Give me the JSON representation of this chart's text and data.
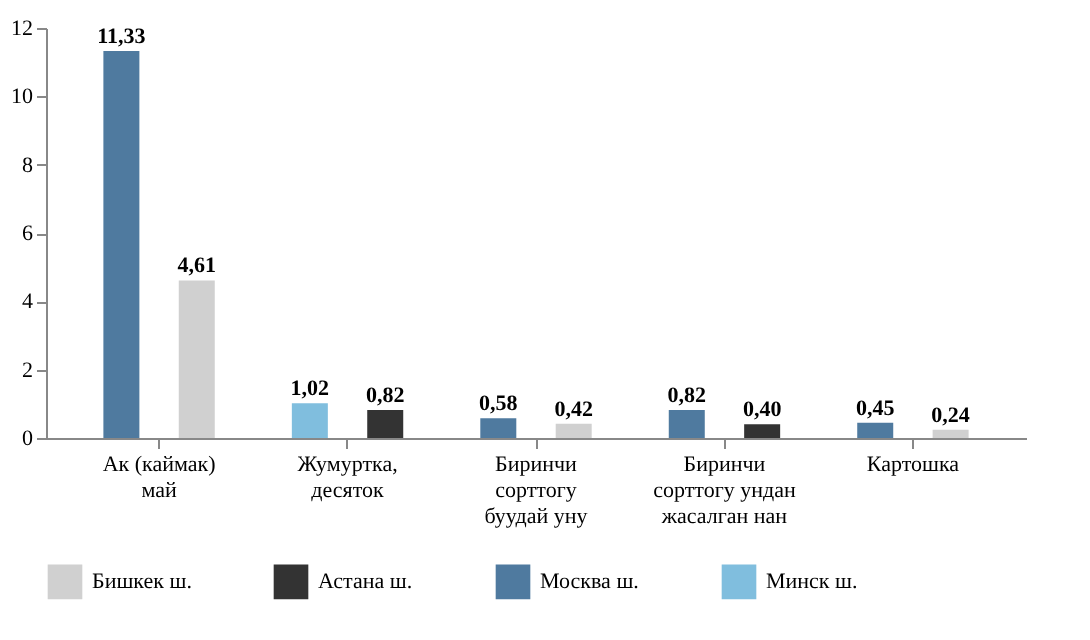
{
  "chart_data": {
    "type": "bar",
    "categories": [
      "Ак (каймак) май",
      "Жумуртка, десяток",
      "Биринчи сорттогу буудай уну",
      "Биринчи сорттогу ундан жасалган нан",
      "Картошка"
    ],
    "series": [
      {
        "name": "Бишкек ш.",
        "color": "#d0d0d0",
        "values": [
          4.61,
          null,
          0.42,
          null,
          0.24
        ],
        "value_labels": [
          "4,61",
          null,
          "0,42",
          null,
          "0,24"
        ]
      },
      {
        "name": "Астана ш.",
        "color": "#333333",
        "values": [
          null,
          0.82,
          null,
          0.4,
          null
        ],
        "value_labels": [
          null,
          "0,82",
          null,
          "0,40",
          null
        ]
      },
      {
        "name": "Москва ш.",
        "color": "#4f7a9f",
        "values": [
          11.33,
          null,
          0.58,
          0.82,
          0.45
        ],
        "value_labels": [
          "11,33",
          null,
          "0,58",
          "0,82",
          "0,45"
        ]
      },
      {
        "name": "Минск ш.",
        "color": "#80bede",
        "values": [
          null,
          1.02,
          null,
          null,
          null
        ],
        "value_labels": [
          null,
          "1,02",
          null,
          null,
          null
        ]
      }
    ],
    "ylim": [
      0,
      12
    ],
    "yticks": [
      0,
      2,
      4,
      6,
      8,
      10,
      12
    ],
    "grid": false,
    "legend": "bottom"
  }
}
